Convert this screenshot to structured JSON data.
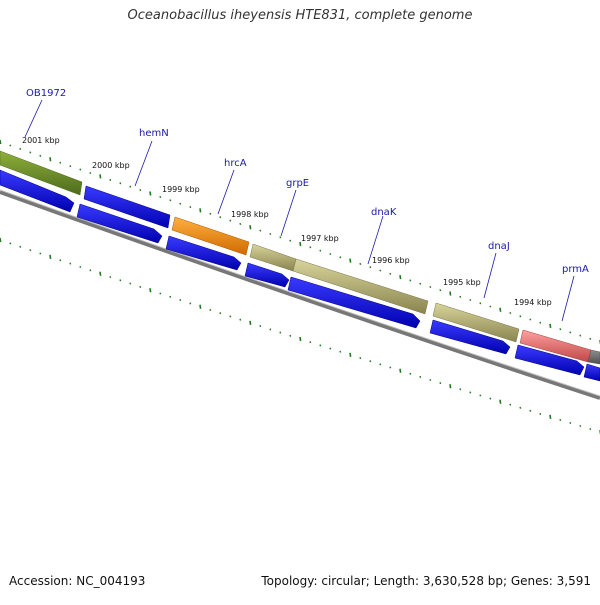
{
  "title": "Oceanobacillus iheyensis HTE831, complete genome",
  "footer": {
    "accession": "Accession: NC_004193",
    "summary": "Topology: circular; Length: 3,630,528 bp; Genes: 3,591"
  },
  "colors": {
    "background": "#ffffff",
    "backbone": "#808080",
    "cds_blue": "#0000ff",
    "tick_green": "#1f7a1f",
    "label_blue": "#1a1aa8"
  },
  "kbp_labels": [
    "2001 kbp",
    "2000 kbp",
    "1999 kbp",
    "1998 kbp",
    "1997 kbp",
    "1996 kbp",
    "1995 kbp",
    "1994 kbp"
  ],
  "gene_labels": [
    "OB1972",
    "hemN",
    "hrcA",
    "grpE",
    "dnaK",
    "dnaJ",
    "prmA"
  ],
  "feature_colors": [
    "#6e8a2b",
    "#ff8c00",
    "#bdb76b",
    "#bdb76b",
    "#bdb76b",
    "#f07a7a",
    "#707070"
  ]
}
